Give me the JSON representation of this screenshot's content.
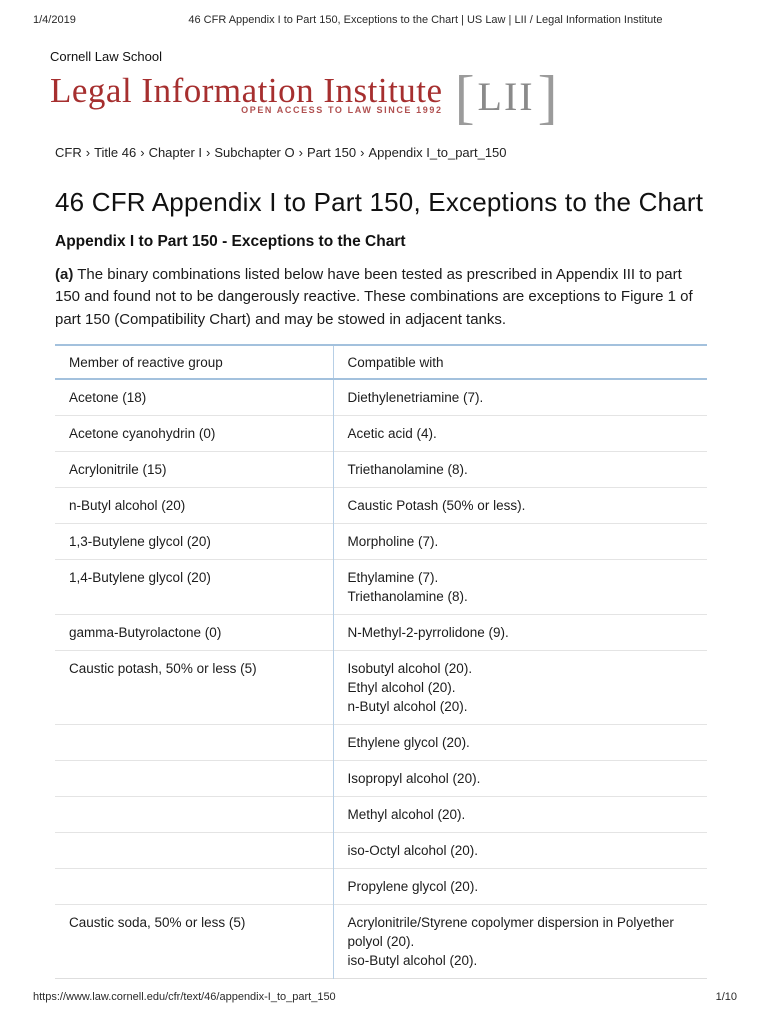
{
  "print_header": {
    "date": "1/4/2019",
    "document_title": "46 CFR Appendix I to Part 150, Exceptions to the Chart | US Law | LII / Legal Information Institute"
  },
  "logo": {
    "school": "Cornell Law School",
    "institute": "Legal Information Institute",
    "tagline": "OPEN ACCESS TO LAW SINCE 1992",
    "acronym": "LII",
    "bracket_left": "[",
    "bracket_right": "]",
    "colors": {
      "institute_red": "#a62f2f",
      "tagline_red": "#b05050",
      "acronym_gray": "#8a8a8a",
      "bracket_gray": "#9b9b9b"
    }
  },
  "breadcrumb": {
    "items": [
      "CFR",
      "Title 46",
      "Chapter I",
      "Subchapter O",
      "Part 150",
      "Appendix I_to_part_150"
    ],
    "separator": "›"
  },
  "page": {
    "title": "46 CFR Appendix I to Part 150, Exceptions to the Chart",
    "subtitle": "Appendix I to Part 150 - Exceptions to the Chart",
    "intro_label": "(a)",
    "intro_text": "The binary combinations listed below have been tested as prescribed in Appendix III to part 150 and found not to be dangerously reactive. These combinations are exceptions to Figure 1 of part 150 (Compatibility Chart) and may be stowed in adjacent tanks."
  },
  "table": {
    "columns": [
      "Member of reactive group",
      "Compatible with"
    ],
    "rows": [
      {
        "member": "Acetone (18)",
        "compatible": [
          "Diethylenetriamine (7)."
        ]
      },
      {
        "member": "Acetone cyanohydrin (0)",
        "compatible": [
          "Acetic acid (4)."
        ]
      },
      {
        "member": "Acrylonitrile (15)",
        "compatible": [
          "Triethanolamine (8)."
        ]
      },
      {
        "member": "n-Butyl alcohol (20)",
        "compatible": [
          "Caustic Potash (50% or less)."
        ]
      },
      {
        "member": "1,3-Butylene glycol (20)",
        "compatible": [
          "Morpholine (7)."
        ]
      },
      {
        "member": "1,4-Butylene glycol (20)",
        "compatible": [
          "Ethylamine (7).",
          "Triethanolamine (8)."
        ]
      },
      {
        "member": "gamma-Butyrolactone (0)",
        "compatible": [
          "N-Methyl-2-pyrrolidone (9)."
        ]
      },
      {
        "member": "Caustic potash, 50% or less (5)",
        "compatible": [
          "Isobutyl alcohol (20).",
          "Ethyl alcohol (20).",
          "n-Butyl alcohol (20)."
        ]
      },
      {
        "member": "",
        "compatible": [
          "Ethylene glycol (20)."
        ]
      },
      {
        "member": "",
        "compatible": [
          "Isopropyl alcohol (20)."
        ]
      },
      {
        "member": "",
        "compatible": [
          "Methyl alcohol (20)."
        ]
      },
      {
        "member": "",
        "compatible": [
          "iso-Octyl alcohol (20)."
        ]
      },
      {
        "member": "",
        "compatible": [
          "Propylene glycol (20)."
        ]
      },
      {
        "member": "Caustic soda, 50% or less (5)",
        "compatible": [
          "Acrylonitrile/Styrene copolymer dispersion in Polyether polyol (20).",
          "iso-Butyl alcohol (20)."
        ]
      }
    ]
  },
  "print_footer": {
    "url": "https://www.law.cornell.edu/cfr/text/46/appendix-I_to_part_150",
    "page_number": "1/10"
  }
}
